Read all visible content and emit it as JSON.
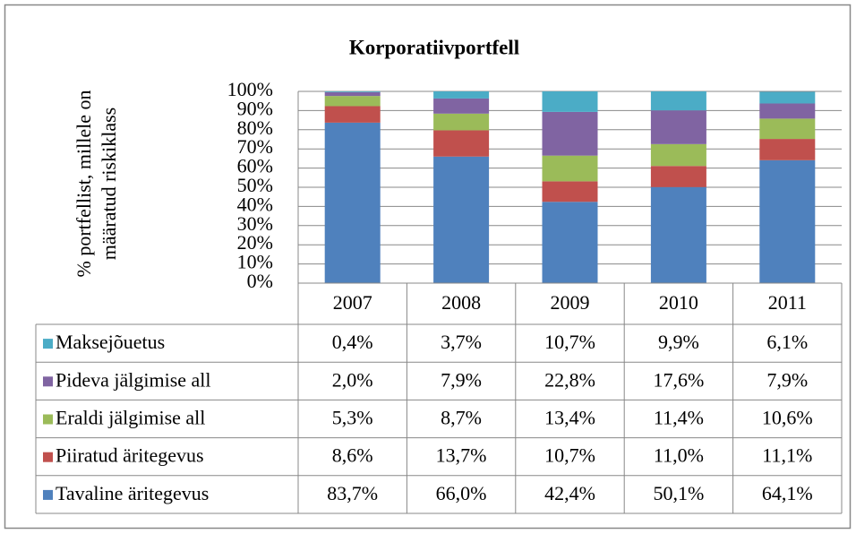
{
  "chart_data": {
    "type": "bar",
    "stacked": true,
    "title": "Korporatiivportfell",
    "y_label": [
      "% portfellist, millele on",
      "määratud riskiklass"
    ],
    "categories": [
      "2007",
      "2008",
      "2009",
      "2010",
      "2011"
    ],
    "ylim": [
      0,
      100
    ],
    "yticks": [
      {
        "value": 0,
        "label": "0%"
      },
      {
        "value": 10,
        "label": "10%"
      },
      {
        "value": 20,
        "label": "20%"
      },
      {
        "value": 30,
        "label": "30%"
      },
      {
        "value": 40,
        "label": "40%"
      },
      {
        "value": 50,
        "label": "50%"
      },
      {
        "value": 60,
        "label": "60%"
      },
      {
        "value": 70,
        "label": "70%"
      },
      {
        "value": 80,
        "label": "80%"
      },
      {
        "value": 90,
        "label": "90%"
      },
      {
        "value": 100,
        "label": "100%"
      }
    ],
    "grid": true,
    "series": [
      {
        "name": "Tavaline äritegevus",
        "color": "#4f81bd",
        "values": [
          83.7,
          66.0,
          42.4,
          50.1,
          64.1
        ],
        "value_labels": [
          "83,7%",
          "66,0%",
          "42,4%",
          "50,1%",
          "64,1%"
        ]
      },
      {
        "name": "Piiratud äritegevus",
        "color": "#c0504d",
        "values": [
          8.6,
          13.7,
          10.7,
          11.0,
          11.1
        ],
        "value_labels": [
          "8,6%",
          "13,7%",
          "10,7%",
          "11,0%",
          "11,1%"
        ]
      },
      {
        "name": "Eraldi jälgimise all",
        "color": "#9bbb59",
        "values": [
          5.3,
          8.7,
          13.4,
          11.4,
          10.6
        ],
        "value_labels": [
          "5,3%",
          "8,7%",
          "13,4%",
          "11,4%",
          "10,6%"
        ]
      },
      {
        "name": "Pideva jälgimise all",
        "color": "#8064a2",
        "values": [
          2.0,
          7.9,
          22.8,
          17.6,
          7.9
        ],
        "value_labels": [
          "2,0%",
          "7,9%",
          "22,8%",
          "17,6%",
          "7,9%"
        ]
      },
      {
        "name": "Maksejõuetus",
        "color": "#4bacc6",
        "values": [
          0.4,
          3.7,
          10.7,
          9.9,
          6.1
        ],
        "value_labels": [
          "0,4%",
          "3,7%",
          "10,7%",
          "9,9%",
          "6,1%"
        ]
      }
    ]
  }
}
